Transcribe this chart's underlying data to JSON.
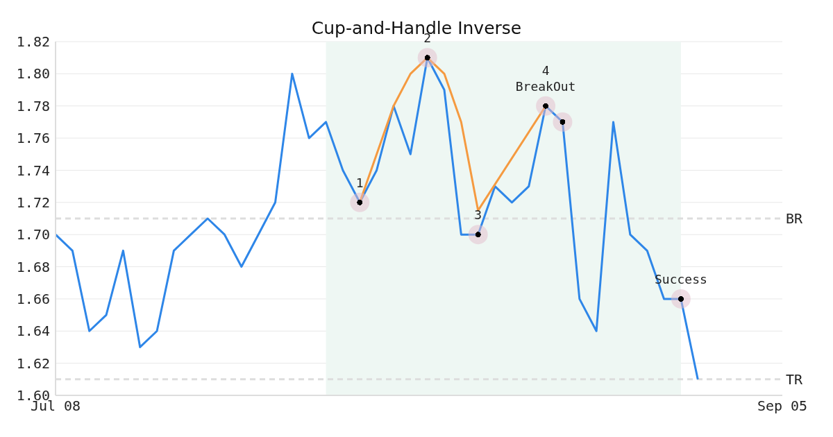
{
  "chart_data": {
    "type": "line",
    "title": "Cup-and-Handle Inverse",
    "categories": [
      "Jul 08",
      null,
      null,
      null,
      null,
      null,
      null,
      null,
      null,
      null,
      null,
      null,
      null,
      null,
      null,
      null,
      null,
      null,
      null,
      null,
      null,
      null,
      null,
      null,
      null,
      null,
      null,
      null,
      null,
      null,
      null,
      null,
      null,
      null,
      null,
      null,
      null,
      null,
      null,
      null,
      null,
      null,
      null,
      "Sep 05"
    ],
    "ylim": [
      1.6,
      1.82
    ],
    "yticks": [
      {
        "value": 1.6,
        "label": "1.60"
      },
      {
        "value": 1.62,
        "label": "1.62"
      },
      {
        "value": 1.64,
        "label": "1.64"
      },
      {
        "value": 1.66,
        "label": "1.66"
      },
      {
        "value": 1.68,
        "label": "1.68"
      },
      {
        "value": 1.7,
        "label": "1.70"
      },
      {
        "value": 1.72,
        "label": "1.72"
      },
      {
        "value": 1.74,
        "label": "1.74"
      },
      {
        "value": 1.76,
        "label": "1.76"
      },
      {
        "value": 1.78,
        "label": "1.78"
      },
      {
        "value": 1.8,
        "label": "1.80"
      },
      {
        "value": 1.82,
        "label": "1.82"
      }
    ],
    "grid": "y",
    "line_style": "solid",
    "series": [
      {
        "color": "#2e86e8",
        "values": [
          1.7,
          1.69,
          1.64,
          1.65,
          1.69,
          1.63,
          1.64,
          1.69,
          1.7,
          1.71,
          1.7,
          1.68,
          1.7,
          1.72,
          1.8,
          1.76,
          1.77,
          1.74,
          1.72,
          1.74,
          1.78,
          1.75,
          1.81,
          1.79,
          1.7,
          1.7,
          1.73,
          1.72,
          1.73,
          1.78,
          1.77,
          1.66,
          1.64,
          1.77,
          1.7,
          1.69,
          1.66,
          1.66,
          1.61,
          null,
          null,
          null,
          null,
          null
        ]
      },
      {
        "color": "#f59a40",
        "values": [
          null,
          null,
          null,
          null,
          null,
          null,
          null,
          null,
          null,
          null,
          null,
          null,
          null,
          null,
          null,
          null,
          null,
          null,
          1.72,
          null,
          1.78,
          1.8,
          1.81,
          1.8,
          1.77,
          1.715,
          null,
          null,
          null,
          1.78,
          null,
          null,
          null,
          null,
          null,
          null,
          null,
          null,
          null,
          null,
          null,
          null,
          null,
          null
        ]
      },
      {
        "type": "scatter",
        "marker": "circle",
        "color": "#000000",
        "values": [
          null,
          null,
          null,
          null,
          null,
          null,
          null,
          null,
          null,
          null,
          null,
          null,
          null,
          null,
          null,
          null,
          null,
          null,
          1.72,
          null,
          null,
          null,
          1.81,
          null,
          null,
          1.7,
          null,
          null,
          null,
          1.78,
          1.77,
          null,
          null,
          null,
          null,
          null,
          null,
          1.66,
          null,
          null,
          null,
          null,
          null,
          null
        ]
      }
    ],
    "annotations": [
      {
        "text": "1",
        "y": 1.72
      },
      {
        "text": "2",
        "y": 1.81
      },
      {
        "text": "3",
        "y": 1.7
      },
      {
        "text": "4\nBreakOut",
        "y": 1.78
      },
      {
        "text": "Success",
        "y": 1.66
      }
    ],
    "ref_lines": [
      {
        "axis": "y",
        "value": 1.71,
        "label": "BR",
        "color": "#dddddd",
        "line_style": "dashed"
      },
      {
        "axis": "y",
        "value": 1.61,
        "label": "TR",
        "color": "#dddddd",
        "line_style": "dashed"
      }
    ]
  }
}
